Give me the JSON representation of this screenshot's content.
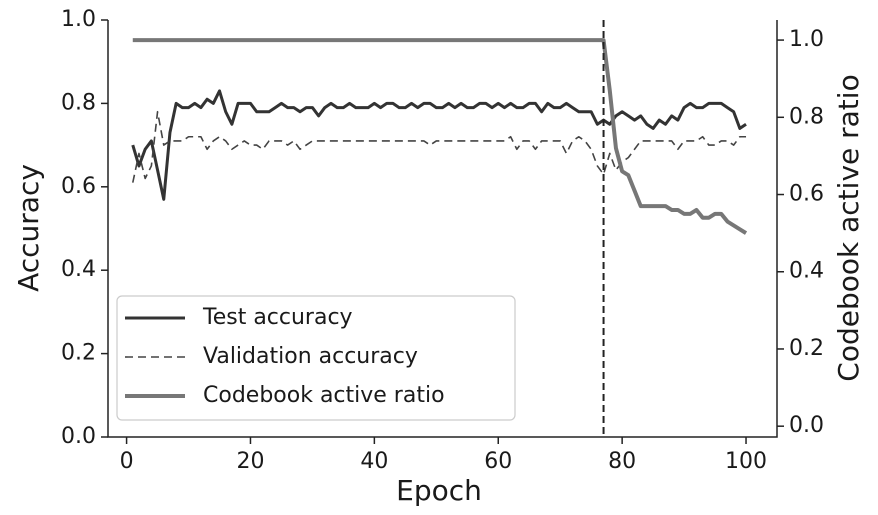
{
  "chart_data": {
    "type": "line",
    "xlabel": "Epoch",
    "ylabel": "Accuracy",
    "y2label": "Codebook active ratio",
    "x": [
      1,
      2,
      3,
      4,
      5,
      6,
      7,
      8,
      9,
      10,
      11,
      12,
      13,
      14,
      15,
      16,
      17,
      18,
      19,
      20,
      21,
      22,
      23,
      24,
      25,
      26,
      27,
      28,
      29,
      30,
      31,
      32,
      33,
      34,
      35,
      36,
      37,
      38,
      39,
      40,
      41,
      42,
      43,
      44,
      45,
      46,
      47,
      48,
      49,
      50,
      51,
      52,
      53,
      54,
      55,
      56,
      57,
      58,
      59,
      60,
      61,
      62,
      63,
      64,
      65,
      66,
      67,
      68,
      69,
      70,
      71,
      72,
      73,
      74,
      75,
      76,
      77,
      78,
      79,
      80,
      81,
      82,
      83,
      84,
      85,
      86,
      87,
      88,
      89,
      90,
      91,
      92,
      93,
      94,
      95,
      96,
      97,
      98,
      99,
      100
    ],
    "series": [
      {
        "name": "Test accuracy",
        "color": "#333333",
        "dash": false,
        "width": 3,
        "values": [
          0.7,
          0.65,
          0.69,
          0.71,
          0.64,
          0.57,
          0.73,
          0.8,
          0.79,
          0.79,
          0.8,
          0.79,
          0.81,
          0.8,
          0.83,
          0.78,
          0.75,
          0.8,
          0.8,
          0.8,
          0.78,
          0.78,
          0.78,
          0.79,
          0.8,
          0.79,
          0.79,
          0.78,
          0.79,
          0.79,
          0.77,
          0.79,
          0.8,
          0.79,
          0.79,
          0.8,
          0.79,
          0.79,
          0.79,
          0.8,
          0.79,
          0.8,
          0.8,
          0.79,
          0.79,
          0.8,
          0.79,
          0.8,
          0.8,
          0.79,
          0.79,
          0.8,
          0.79,
          0.8,
          0.79,
          0.79,
          0.8,
          0.8,
          0.79,
          0.8,
          0.79,
          0.8,
          0.79,
          0.79,
          0.8,
          0.8,
          0.78,
          0.8,
          0.79,
          0.79,
          0.8,
          0.79,
          0.78,
          0.78,
          0.78,
          0.75,
          0.76,
          0.75,
          0.77,
          0.78,
          0.77,
          0.76,
          0.77,
          0.75,
          0.74,
          0.76,
          0.75,
          0.77,
          0.76,
          0.79,
          0.8,
          0.79,
          0.79,
          0.8,
          0.8,
          0.8,
          0.79,
          0.78,
          0.74,
          0.75
        ]
      },
      {
        "name": "Validation accuracy",
        "color": "#444444",
        "dash": true,
        "width": 1.6,
        "values": [
          0.61,
          0.68,
          0.62,
          0.65,
          0.78,
          0.7,
          0.71,
          0.71,
          0.71,
          0.72,
          0.72,
          0.72,
          0.69,
          0.71,
          0.72,
          0.71,
          0.69,
          0.7,
          0.71,
          0.7,
          0.7,
          0.69,
          0.71,
          0.71,
          0.71,
          0.7,
          0.71,
          0.69,
          0.7,
          0.71,
          0.71,
          0.71,
          0.71,
          0.71,
          0.71,
          0.71,
          0.71,
          0.71,
          0.71,
          0.71,
          0.71,
          0.71,
          0.71,
          0.71,
          0.71,
          0.71,
          0.71,
          0.71,
          0.7,
          0.71,
          0.71,
          0.71,
          0.71,
          0.71,
          0.71,
          0.71,
          0.71,
          0.71,
          0.71,
          0.71,
          0.71,
          0.72,
          0.69,
          0.71,
          0.71,
          0.69,
          0.71,
          0.71,
          0.71,
          0.71,
          0.68,
          0.71,
          0.72,
          0.71,
          0.69,
          0.65,
          0.63,
          0.68,
          0.64,
          0.66,
          0.67,
          0.69,
          0.71,
          0.71,
          0.71,
          0.71,
          0.71,
          0.71,
          0.69,
          0.71,
          0.71,
          0.71,
          0.72,
          0.7,
          0.7,
          0.71,
          0.71,
          0.7,
          0.72,
          0.72
        ]
      },
      {
        "name": "Codebook active ratio",
        "color": "#777777",
        "dash": false,
        "width": 4,
        "axis": "y2",
        "values": [
          1,
          1,
          1,
          1,
          1,
          1,
          1,
          1,
          1,
          1,
          1,
          1,
          1,
          1,
          1,
          1,
          1,
          1,
          1,
          1,
          1,
          1,
          1,
          1,
          1,
          1,
          1,
          1,
          1,
          1,
          1,
          1,
          1,
          1,
          1,
          1,
          1,
          1,
          1,
          1,
          1,
          1,
          1,
          1,
          1,
          1,
          1,
          1,
          1,
          1,
          1,
          1,
          1,
          1,
          1,
          1,
          1,
          1,
          1,
          1,
          1,
          1,
          1,
          1,
          1,
          1,
          1,
          1,
          1,
          1,
          1,
          1,
          1,
          1,
          1,
          1,
          1,
          0.87,
          0.72,
          0.66,
          0.65,
          0.61,
          0.57,
          0.57,
          0.57,
          0.57,
          0.57,
          0.56,
          0.56,
          0.55,
          0.55,
          0.56,
          0.54,
          0.54,
          0.55,
          0.55,
          0.53,
          0.52,
          0.51,
          0.5
        ]
      }
    ],
    "vlines": [
      77
    ],
    "xlim": [
      -3,
      105
    ],
    "xticks": [
      0,
      20,
      40,
      60,
      80,
      100
    ],
    "ylim": [
      0,
      1
    ],
    "yticks": [
      {
        "value": 0,
        "label": "0.0"
      },
      0.2,
      0.4,
      0.6,
      0.8,
      {
        "value": 1,
        "label": "1.0"
      }
    ],
    "y2lim": [
      -0.028,
      1.052
    ],
    "y2ticks": [
      {
        "value": 0,
        "label": "0.0"
      },
      0.2,
      0.4,
      0.6,
      0.8,
      {
        "value": 1,
        "label": "1.0"
      }
    ],
    "legend": "lower left"
  }
}
